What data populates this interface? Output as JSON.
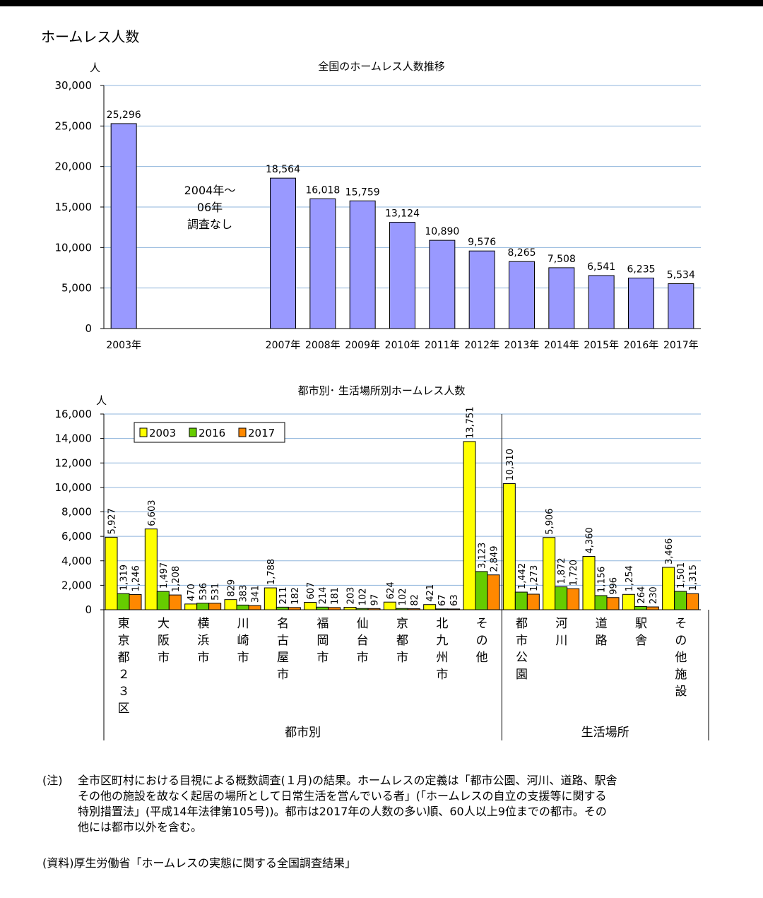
{
  "page_title": "ホームレス人数",
  "chart_data": [
    {
      "type": "bar",
      "title": "全国のホームレス人数推移",
      "ylabel": "人",
      "ylim": [
        0,
        30000
      ],
      "yticks": [
        "0",
        "5,000",
        "10,000",
        "15,000",
        "20,000",
        "25,000",
        "30,000"
      ],
      "categories": [
        "2003年",
        "2007年",
        "2008年",
        "2009年",
        "2010年",
        "2011年",
        "2012年",
        "2013年",
        "2014年",
        "2015年",
        "2016年",
        "2017年"
      ],
      "values": [
        25296,
        18564,
        16018,
        15759,
        13124,
        10890,
        9576,
        8265,
        7508,
        6541,
        6235,
        5534
      ],
      "value_labels": [
        "25,296",
        "18,564",
        "16,018",
        "15,759",
        "13,124",
        "10,890",
        "9,576",
        "8,265",
        "7,508",
        "6,541",
        "6,235",
        "5,534"
      ],
      "annotation": [
        "2004年～",
        "06年",
        "調査なし"
      ],
      "color": "#9999ff"
    },
    {
      "type": "bar",
      "title": "都市別･ 生活場所別ホームレス人数",
      "ylabel": "人",
      "ylim": [
        0,
        16000
      ],
      "yticks": [
        "0",
        "2,000",
        "4,000",
        "6,000",
        "8,000",
        "10,000",
        "12,000",
        "14,000",
        "16,000"
      ],
      "categories": [
        [
          "東",
          "京",
          "都",
          "２",
          "３",
          "区"
        ],
        [
          "大",
          "阪",
          "市"
        ],
        [
          "横",
          "浜",
          "市"
        ],
        [
          "川",
          "崎",
          "市"
        ],
        [
          "名",
          "古",
          "屋",
          "市"
        ],
        [
          "福",
          "岡",
          "市"
        ],
        [
          "仙",
          "台",
          "市"
        ],
        [
          "京",
          "都",
          "市"
        ],
        [
          "北",
          "九",
          "州",
          "市"
        ],
        [
          "そ",
          "の",
          "他"
        ],
        [
          "都",
          "市",
          "公",
          "園"
        ],
        [
          "河",
          "川"
        ],
        [
          "道",
          "路"
        ],
        [
          "駅",
          "舎"
        ],
        [
          "そ",
          "の",
          "他",
          "施",
          "設"
        ]
      ],
      "groups": [
        {
          "label": "都市別",
          "count": 10
        },
        {
          "label": "生活場所",
          "count": 5
        }
      ],
      "series": [
        {
          "name": "2003",
          "color": "#ffff00",
          "values": [
            5927,
            6603,
            470,
            829,
            1788,
            607,
            203,
            624,
            421,
            13751,
            10310,
            5906,
            4360,
            1254,
            3466
          ],
          "labels": [
            "5,927",
            "6,603",
            "470",
            "829",
            "1,788",
            "607",
            "203",
            "624",
            "421",
            "13,751",
            "10,310",
            "5,906",
            "4,360",
            "1,254",
            "3,466"
          ]
        },
        {
          "name": "2016",
          "color": "#66cc00",
          "values": [
            1319,
            1497,
            536,
            383,
            211,
            214,
            102,
            102,
            67,
            3123,
            1442,
            1872,
            1156,
            264,
            1501
          ],
          "labels": [
            "1,319",
            "1,497",
            "536",
            "383",
            "211",
            "214",
            "102",
            "102",
            "67",
            "3,123",
            "1,442",
            "1,872",
            "1,156",
            "264",
            "1,501"
          ]
        },
        {
          "name": "2017",
          "color": "#ff8800",
          "values": [
            1246,
            1208,
            531,
            341,
            182,
            181,
            97,
            82,
            63,
            2849,
            1273,
            1720,
            996,
            230,
            1315
          ],
          "labels": [
            "1,246",
            "1,208",
            "531",
            "341",
            "182",
            "181",
            "97",
            "82",
            "63",
            "2,849",
            "1,273",
            "1,720",
            "996",
            "230",
            "1,315"
          ]
        }
      ]
    }
  ],
  "note": {
    "head": "(注)",
    "lines": [
      "全市区町村における目視による概数調査(１月)の結果。ホームレスの定義は「都市公園、河川、道路、駅舎",
      "その他の施設を故なく起居の場所として日常生活を営んでいる者」(「ホームレスの自立の支援等に関する",
      "特別措置法」(平成14年法律第105号))。都市は2017年の人数の多い順、60人以上9位までの都市。その",
      "他には都市以外を含む。"
    ]
  },
  "source": "(資料)厚生労働省「ホームレスの実態に関する全国調査結果」"
}
